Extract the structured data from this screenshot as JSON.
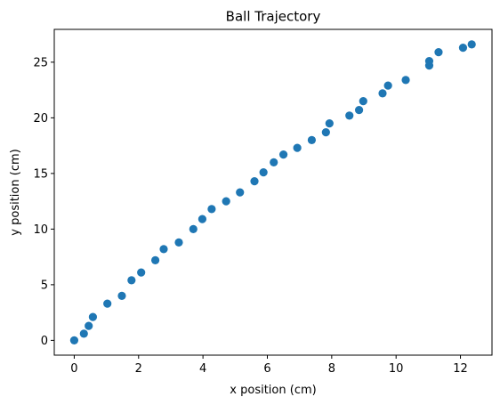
{
  "chart_data": {
    "type": "scatter",
    "title": "Ball Trajectory",
    "xlabel": "x position (cm)",
    "ylabel": "y position (cm)",
    "xlim": [
      -0.62,
      12.98
    ],
    "ylim": [
      -1.33,
      27.95
    ],
    "xticks": [
      0,
      2,
      4,
      6,
      8,
      10,
      12
    ],
    "yticks": [
      0,
      5,
      10,
      15,
      20,
      25
    ],
    "grid": false,
    "marker_color": "#1f77b4",
    "series": [
      {
        "x": [
          0.0,
          0.3,
          0.45,
          0.58,
          1.03,
          1.48,
          1.78,
          2.08,
          2.52,
          2.78,
          3.25,
          3.7,
          3.98,
          4.27,
          4.72,
          5.15,
          5.6,
          5.88,
          6.2,
          6.5,
          6.93,
          7.38,
          7.82,
          7.93,
          8.55,
          8.85,
          8.98,
          9.58,
          9.75,
          10.3,
          11.03,
          11.03,
          11.32,
          12.08,
          12.35
        ],
        "y": [
          0.0,
          0.6,
          1.3,
          2.1,
          3.3,
          4.0,
          5.4,
          6.1,
          7.2,
          8.2,
          8.8,
          10.0,
          10.9,
          11.8,
          12.5,
          13.3,
          14.3,
          15.1,
          16.0,
          16.7,
          17.3,
          18.0,
          18.7,
          19.5,
          20.2,
          20.7,
          21.5,
          22.2,
          22.9,
          23.4,
          24.7,
          25.1,
          25.9,
          26.3,
          26.6
        ]
      }
    ]
  }
}
